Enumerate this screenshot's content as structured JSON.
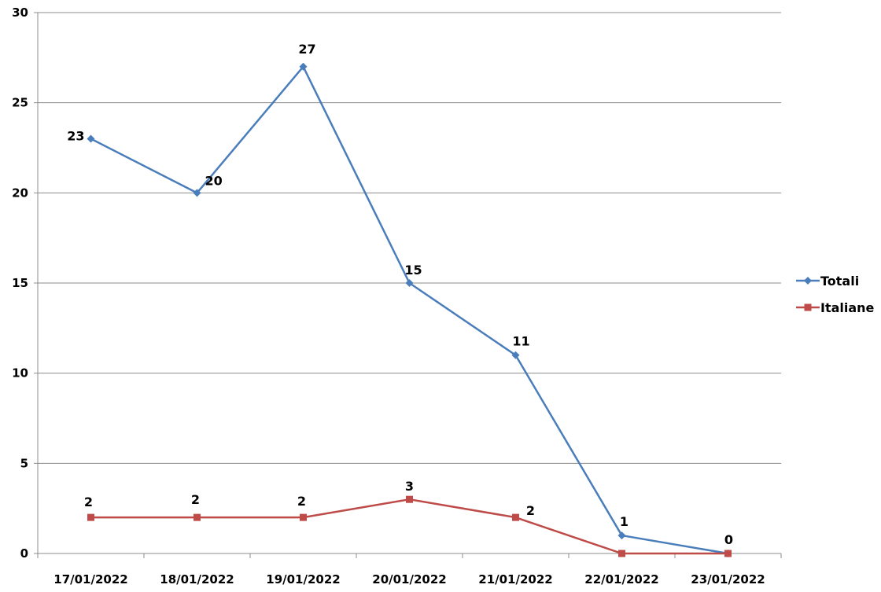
{
  "chart_data": {
    "type": "line",
    "categories": [
      "17/01/2022",
      "18/01/2022",
      "19/01/2022",
      "20/01/2022",
      "21/01/2022",
      "22/01/2022",
      "23/01/2022"
    ],
    "ylim": [
      0,
      30
    ],
    "yticks": [
      0,
      5,
      10,
      15,
      20,
      25,
      30
    ],
    "grid": true,
    "legend_position": "right",
    "series": [
      {
        "name": "Totali",
        "values": [
          23,
          20,
          27,
          15,
          11,
          1,
          0
        ],
        "color": "#4a7ebb",
        "marker": "diamond"
      },
      {
        "name": "Italiane",
        "values": [
          2,
          2,
          2,
          3,
          2,
          0,
          0
        ],
        "color": "#be4b48",
        "marker": "square"
      }
    ]
  }
}
